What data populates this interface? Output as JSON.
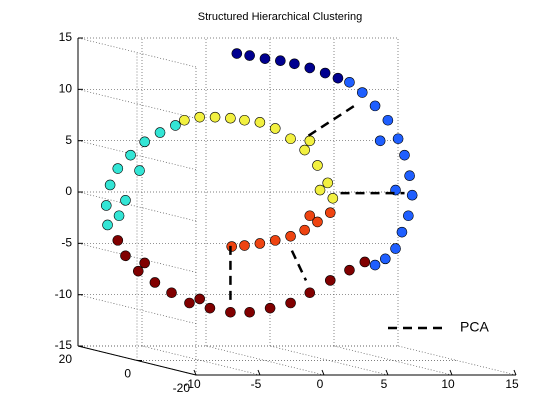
{
  "chart_data": {
    "type": "scatter3d",
    "title": "Structured Hierarchical Clustering",
    "xlim": [
      -10,
      15
    ],
    "xticks": [
      -10,
      -5,
      0,
      5,
      10,
      15
    ],
    "ylim": [
      -20,
      20
    ],
    "yticks": [
      -20,
      0,
      20
    ],
    "zlim": [
      -15,
      15
    ],
    "zticks": [
      -15,
      -10,
      -5,
      0,
      5,
      10,
      15
    ],
    "grid": true,
    "legend": "lower right",
    "series": [
      {
        "color": "#00008f",
        "x": [
          -2.2,
          -1.2,
          0,
          1.2,
          2.3,
          3.5,
          4.7,
          5.7
        ],
        "z": [
          14.9,
          14.7,
          14.4,
          14.2,
          13.9,
          13.5,
          13.0,
          12.5
        ]
      },
      {
        "color": "#1f5fff",
        "x": [
          6.6,
          7.6,
          8.6,
          9.6,
          10.4,
          10.9,
          11.3,
          11.5,
          11.2,
          10.7,
          10.2,
          9.4,
          8.6,
          10.2,
          9.0
        ],
        "z": [
          12.1,
          11.1,
          9.8,
          8.4,
          6.6,
          5.0,
          3.0,
          1.1,
          -0.9,
          -2.5,
          -4.1,
          -5.1,
          -5.7,
          1.6,
          6.4
        ]
      },
      {
        "color": "#33e5d5",
        "x": [
          -12.3,
          -12.4,
          -12.1,
          -11.5,
          -10.5,
          -9.4,
          -8.2,
          -7.0,
          -10.9,
          -9.8,
          -11.4
        ],
        "z": [
          -1.8,
          0.1,
          2.1,
          3.7,
          5.0,
          6.3,
          7.2,
          7.9,
          0.6,
          3.5,
          -0.9
        ]
      },
      {
        "color": "#f2f040",
        "x": [
          -6.3,
          -5.1,
          -3.9,
          -2.7,
          -1.6,
          -0.4,
          0.8,
          2.0,
          3.1,
          4.1,
          4.9,
          5.3,
          4.3,
          3.5
        ],
        "z": [
          8.4,
          8.7,
          8.7,
          8.6,
          8.4,
          8.2,
          7.6,
          6.6,
          5.5,
          4.0,
          2.3,
          0.8,
          1.6,
          6.4
        ]
      },
      {
        "color": "#ee4411",
        "x": [
          5.1,
          4.1,
          3.1,
          2.0,
          0.8,
          -0.4,
          -1.6,
          -2.6,
          3.5
        ],
        "z": [
          -0.6,
          -1.5,
          -2.3,
          -2.9,
          -3.3,
          -3.6,
          -3.8,
          -3.9,
          -0.9
        ]
      },
      {
        "color": "#800000",
        "x": [
          -11.5,
          -10.9,
          -9.9,
          -8.6,
          -7.3,
          -5.9,
          -4.3,
          -2.7,
          -1.2,
          0.4,
          2.0,
          3.5,
          5.1,
          6.6,
          7.8,
          -9.4,
          -5.1
        ],
        "z": [
          -3.3,
          -4.8,
          -6.3,
          -7.4,
          -8.4,
          -9.4,
          -9.9,
          -10.3,
          -10.3,
          -9.9,
          -9.4,
          -8.4,
          -7.2,
          -6.2,
          -5.4,
          -5.5,
          -9.0
        ]
      },
      {
        "name": "PCA",
        "color": "#000000",
        "style": "dashed",
        "x": [
          -2.7,
          -2.7,
          null,
          2.1,
          3.2,
          null,
          3.4,
          7.1,
          null,
          5.9,
          10.9
        ],
        "z": [
          -9.1,
          -3.8,
          null,
          -4.3,
          -7.2,
          null,
          6.9,
          9.9,
          null,
          1.3,
          1.3
        ]
      }
    ]
  }
}
